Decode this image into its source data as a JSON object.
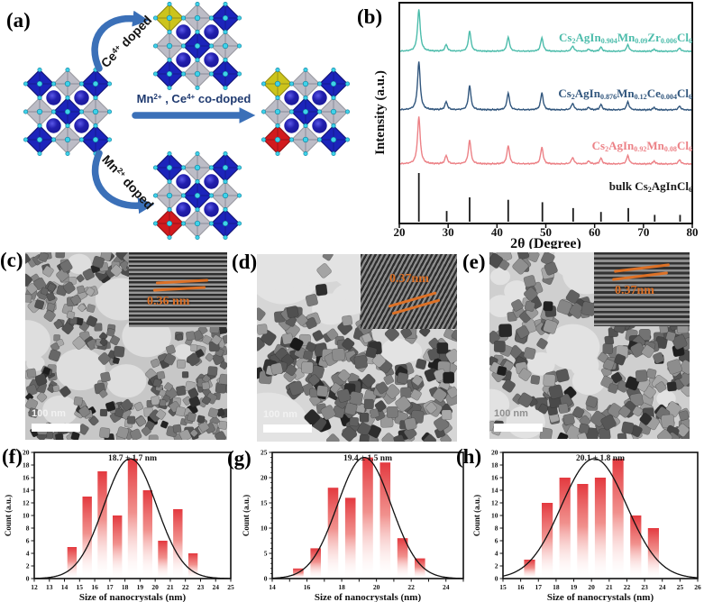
{
  "figure": {
    "panel_labels": {
      "a": "(a)",
      "b": "(b)",
      "c": "(c)",
      "d": "(d)",
      "e": "(e)",
      "f": "(f)",
      "g": "(g)",
      "h": "(h)"
    }
  },
  "panel_a": {
    "arrow_top_label": "Ce[4+] doped",
    "arrow_mid_label": "Mn[2+] , Ce[4+] co-doped",
    "arrow_bottom_label": "Mn[2+] doped",
    "colors": {
      "octahedron_blue": "#1c24bb",
      "octahedron_gray": "#bcbcc6",
      "ce_doped_yellow": "#ccc41c",
      "mn_doped_red": "#d21a1e",
      "cs_sphere_navy": "#181694",
      "cl_dot_cyan": "#3fd2e9",
      "arrow_blue": "#3b70b8"
    },
    "lattices": [
      {
        "id": "pristine",
        "dope": {}
      },
      {
        "id": "ce-doped",
        "dope": {
          "0,0": "ce_doped_yellow"
        }
      },
      {
        "id": "mn-doped",
        "dope": {
          "2,0": "mn_doped_red"
        }
      },
      {
        "id": "co-doped",
        "dope": {
          "0,0": "ce_doped_yellow",
          "2,0": "mn_doped_red"
        }
      }
    ]
  },
  "panel_b": {
    "series_rich_labels": [
      {
        "text": "Cs{2}AgIn{0.904}Mn{0.09}Zr{0.006}Cl{6}",
        "color": "#4cbcab"
      },
      {
        "text": "Cs{2}AgIn{0.876}Mn{0.12}Ce{0.004}Cl{6}",
        "color": "#31567d"
      },
      {
        "text": "Cs{2}AgIn{0.92}Mn{0.08}Cl{6}",
        "color": "#ec8186"
      },
      {
        "text": "bulk Cs{2}AgInCl{6}",
        "color": "#1a1a1a"
      }
    ]
  },
  "panel_c": {
    "inset_label": "0.36 nm",
    "scale_bar": "100 nm"
  },
  "panel_d": {
    "inset_label": "0.37nm",
    "scale_bar": "100 nm"
  },
  "panel_e": {
    "inset_label": "0.37nm",
    "scale_bar": "100 nm"
  },
  "chart_data": [
    {
      "type": "line",
      "panel": "b",
      "title": "",
      "xlabel": "2θ (Degree)",
      "ylabel": "Intensity (a.u.)",
      "xlim": [
        20,
        80
      ],
      "xticks": [
        20,
        30,
        40,
        50,
        60,
        70,
        80
      ],
      "grid": false,
      "peak_positions_2theta": [
        24.0,
        29.6,
        34.4,
        42.3,
        49.2,
        55.5,
        58.8,
        61.3,
        66.8,
        72.2,
        77.4
      ],
      "series": [
        {
          "name": "Cs2AgIn0.904Mn0.09Zr0.006Cl6",
          "color": "#4cbcab",
          "style": "curve",
          "rel_intensities": [
            1,
            0.16,
            0.5,
            0.35,
            0.33,
            0.13,
            0.05,
            0.1,
            0.16,
            0.05,
            0.08
          ]
        },
        {
          "name": "Cs2AgIn0.876Mn0.12Ce0.004Cl6",
          "color": "#31567d",
          "style": "curve",
          "rel_intensities": [
            1,
            0.17,
            0.52,
            0.36,
            0.36,
            0.14,
            0.05,
            0.11,
            0.17,
            0.05,
            0.08
          ]
        },
        {
          "name": "Cs2AgIn0.92Mn0.08Cl6",
          "color": "#ec8186",
          "style": "curve",
          "rel_intensities": [
            1,
            0.18,
            0.52,
            0.4,
            0.36,
            0.14,
            0.06,
            0.12,
            0.18,
            0.06,
            0.09
          ]
        },
        {
          "name": "bulk Cs2AgInCl6",
          "color": "#1a1a1a",
          "style": "sticks",
          "positions": [
            24.0,
            29.7,
            34.4,
            42.3,
            49.3,
            55.6,
            61.3,
            66.9,
            72.3,
            77.5
          ],
          "rel_intensities": [
            1,
            0.22,
            0.5,
            0.45,
            0.4,
            0.28,
            0.2,
            0.28,
            0.14,
            0.14
          ]
        }
      ]
    },
    {
      "type": "bar",
      "panel": "f",
      "title": "18.7 ± 1.7 nm",
      "xlabel": "Size of nanocrystals (nm)",
      "ylabel": "Count (a.u.)",
      "xlim": [
        12,
        25
      ],
      "ylim": [
        0,
        20
      ],
      "xticks": [
        12,
        13,
        14,
        15,
        16,
        17,
        18,
        19,
        20,
        21,
        22,
        23,
        24,
        25
      ],
      "xtick_labels": [
        12,
        13,
        14,
        15,
        16,
        17,
        18,
        19,
        20,
        21,
        22,
        23,
        24,
        25
      ],
      "yticks": [
        0,
        2,
        4,
        6,
        8,
        10,
        12,
        14,
        16,
        18,
        20
      ],
      "yticks_minor": [],
      "centers": [
        14.5,
        15.5,
        16.5,
        17.5,
        18.5,
        19.5,
        20.5,
        21.5,
        22.5
      ],
      "values": [
        5,
        13,
        17,
        10,
        19,
        14,
        6,
        11,
        4
      ],
      "bar_width": 0.62,
      "bar_color_top": "#e23137",
      "gauss": {
        "mean": 18.35,
        "sigma": 1.75,
        "amp": 19
      }
    },
    {
      "type": "bar",
      "panel": "g",
      "title": "19.4 ± 1.5 nm",
      "xlabel": "Size of nanocrystals (nm)",
      "ylabel": "Count (a.u.)",
      "xlim": [
        14,
        25
      ],
      "ylim": [
        0,
        25
      ],
      "xticks": [
        14,
        15,
        16,
        17,
        18,
        19,
        20,
        21,
        22,
        23,
        24,
        25
      ],
      "xtick_labels": [
        14,
        16,
        18,
        20,
        22,
        24
      ],
      "yticks": [
        0,
        5,
        10,
        15,
        20,
        25
      ],
      "yticks_minor": [
        1,
        2,
        3,
        4,
        6,
        7,
        8,
        9,
        11,
        12,
        13,
        14,
        16,
        17,
        18,
        19,
        21,
        22,
        23,
        24
      ],
      "centers": [
        15.5,
        16.5,
        17.5,
        18.5,
        19.5,
        20.5,
        21.5,
        22.5
      ],
      "values": [
        2,
        6,
        18,
        16,
        24,
        23,
        8,
        4
      ],
      "bar_width": 0.6,
      "bar_color_top": "#e23137",
      "gauss": {
        "mean": 19.3,
        "sigma": 1.55,
        "amp": 24
      }
    },
    {
      "type": "bar",
      "panel": "h",
      "title": "20.1 ± 1.8 nm",
      "xlabel": "Size of nanocrystals (nm)",
      "ylabel": "Count (a.u.)",
      "xlim": [
        15,
        26
      ],
      "ylim": [
        0,
        20
      ],
      "xticks": [
        15,
        16,
        17,
        18,
        19,
        20,
        21,
        22,
        23,
        24,
        25,
        26
      ],
      "xtick_labels": [
        15,
        16,
        17,
        18,
        19,
        20,
        21,
        22,
        23,
        24,
        25,
        26
      ],
      "yticks": [
        0,
        2,
        4,
        6,
        8,
        10,
        12,
        14,
        16,
        18,
        20
      ],
      "yticks_minor": [],
      "centers": [
        16.5,
        17.5,
        18.5,
        19.5,
        20.5,
        21.5,
        22.5,
        23.5
      ],
      "values": [
        3,
        12,
        16,
        15,
        16,
        19,
        10,
        8
      ],
      "bar_width": 0.62,
      "bar_color_top": "#e23137",
      "gauss": {
        "mean": 20.15,
        "sigma": 1.85,
        "amp": 19
      }
    }
  ]
}
